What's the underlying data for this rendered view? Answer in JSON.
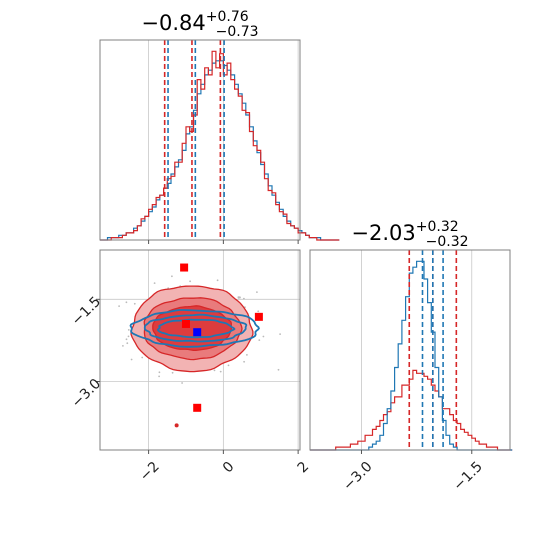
{
  "colors": {
    "red": "#d62728",
    "blue": "#1f77b4",
    "grid": "#c8c8c8",
    "axes": "#808080",
    "scatter": "#bbbbbb",
    "fill_outer": "#f2b3b3",
    "fill_mid": "#e97b7c",
    "fill_inner": "#dd3c3e"
  },
  "chart_data": [
    {
      "type": "histogram",
      "panel": "top-left",
      "title": "−0.84",
      "title_sup": "+0.76",
      "title_sub": "−0.73",
      "xlim": [
        -3.3,
        2.05
      ],
      "series": [
        {
          "name": "",
          "color": "#1f77b4",
          "bin_start": -3.3,
          "bin_width": 0.1,
          "counts": [
            0,
            0,
            1,
            1,
            1,
            2,
            2,
            3,
            3,
            5,
            6,
            8,
            10,
            12,
            14,
            17,
            19,
            22,
            24,
            28,
            31,
            34,
            38,
            45,
            48,
            55,
            62,
            66,
            70,
            72,
            75,
            76,
            76,
            74,
            72,
            70,
            66,
            62,
            58,
            53,
            48,
            42,
            37,
            32,
            28,
            23,
            19,
            16,
            13,
            10,
            8,
            6,
            5,
            4,
            3,
            2,
            1,
            1,
            1,
            0,
            0,
            0,
            0,
            0
          ]
        },
        {
          "name": "",
          "color": "#d62728",
          "bin_start": -3.3,
          "bin_width": 0.1,
          "counts": [
            0,
            0,
            0,
            1,
            1,
            1,
            2,
            3,
            3,
            4,
            6,
            9,
            10,
            13,
            15,
            18,
            19,
            22,
            26,
            27,
            33,
            33,
            41,
            48,
            46,
            53,
            68,
            64,
            73,
            70,
            80,
            73,
            79,
            70,
            75,
            68,
            64,
            61,
            55,
            54,
            46,
            40,
            38,
            33,
            26,
            21,
            20,
            15,
            12,
            11,
            7,
            6,
            5,
            3,
            3,
            2,
            1,
            1,
            0,
            0,
            0,
            0,
            0,
            0
          ]
        }
      ],
      "quantiles": [
        {
          "color": "#d62728",
          "values": [
            -1.57,
            -0.84,
            -0.08
          ]
        },
        {
          "color": "#1f77b4",
          "values": [
            -1.48,
            -0.75,
            0.02
          ]
        }
      ],
      "xticks": [
        -2,
        0,
        2
      ],
      "grid": true
    },
    {
      "type": "contour",
      "panel": "bottom-left",
      "xlim": [
        -3.3,
        2.05
      ],
      "ylim": [
        -4.25,
        -0.6
      ],
      "xticks": [
        -2,
        0,
        2
      ],
      "xtick_labels": [
        "−2",
        "0",
        "2"
      ],
      "yticks": [
        -1.5,
        -3.0
      ],
      "ytick_labels": [
        "−1.5",
        "−3.0"
      ],
      "red_center": [
        -0.84,
        -2.03
      ],
      "red_levels": [
        {
          "sx": 1.05,
          "sy": 0.4
        },
        {
          "sx": 1.3,
          "sy": 0.56
        },
        {
          "sx": 1.6,
          "sy": 0.78
        }
      ],
      "blue_center": [
        -0.75,
        -2.03
      ],
      "blue_levels": [
        {
          "sx": 1.0,
          "sy": 0.16
        },
        {
          "sx": 1.35,
          "sy": 0.24
        },
        {
          "sx": 1.7,
          "sy": 0.33
        }
      ],
      "markers": [
        {
          "x": -1.05,
          "y": -0.92,
          "color": "#ff0000",
          "shape": "square"
        },
        {
          "x": -1.0,
          "y": -1.95,
          "color": "#ff0000",
          "shape": "square"
        },
        {
          "x": 0.95,
          "y": -1.82,
          "color": "#ff0000",
          "shape": "square"
        },
        {
          "x": -0.7,
          "y": -3.48,
          "color": "#ff0000",
          "shape": "square"
        },
        {
          "x": -0.7,
          "y": -2.1,
          "color": "#0000ff",
          "shape": "square"
        },
        {
          "x": -1.25,
          "y": -3.8,
          "color": "#d62728",
          "shape": "dot"
        }
      ],
      "grid": true
    },
    {
      "type": "histogram",
      "panel": "bottom-right",
      "title": "−2.03",
      "title_sup": "+0.32",
      "title_sub": "−0.32",
      "xlim": [
        -3.7,
        -0.98
      ],
      "series": [
        {
          "name": "",
          "color": "#d62728",
          "bin_start": -3.7,
          "bin_width": 0.05,
          "counts": [
            0,
            0,
            0,
            0,
            0,
            0,
            0,
            1,
            1,
            1,
            1,
            2,
            2,
            3,
            3,
            5,
            5,
            7,
            8,
            10,
            12,
            13,
            16,
            18,
            18,
            22,
            22,
            24,
            27,
            26,
            26,
            25,
            24,
            22,
            20,
            18,
            14,
            14,
            12,
            10,
            9,
            7,
            6,
            5,
            4,
            3,
            2,
            2,
            1,
            1,
            1,
            0,
            0,
            0,
            0
          ]
        },
        {
          "name": "",
          "color": "#1f77b4",
          "bin_start": -3.7,
          "bin_width": 0.05,
          "counts": [
            0,
            0,
            0,
            0,
            0,
            0,
            0,
            0,
            0,
            0,
            0,
            0,
            0,
            0,
            0,
            0,
            1,
            2,
            3,
            5,
            9,
            14,
            20,
            28,
            36,
            44,
            52,
            60,
            62,
            64,
            64,
            58,
            50,
            40,
            28,
            18,
            10,
            5,
            2,
            1,
            0,
            0,
            0,
            0,
            0,
            0,
            0,
            0,
            0,
            0,
            0,
            0,
            0,
            0,
            0
          ]
        }
      ],
      "quantiles": [
        {
          "color": "#d62728",
          "values": [
            -2.35,
            -2.03,
            -1.71
          ]
        },
        {
          "color": "#1f77b4",
          "values": [
            -2.17,
            -2.03,
            -1.89
          ]
        }
      ],
      "xticks": [
        -3.0,
        -1.5
      ],
      "xtick_labels": [
        "−3.0",
        "−1.5"
      ],
      "grid": true
    }
  ],
  "panel1_xtick_labels": [
    "−2",
    "0",
    "2"
  ]
}
